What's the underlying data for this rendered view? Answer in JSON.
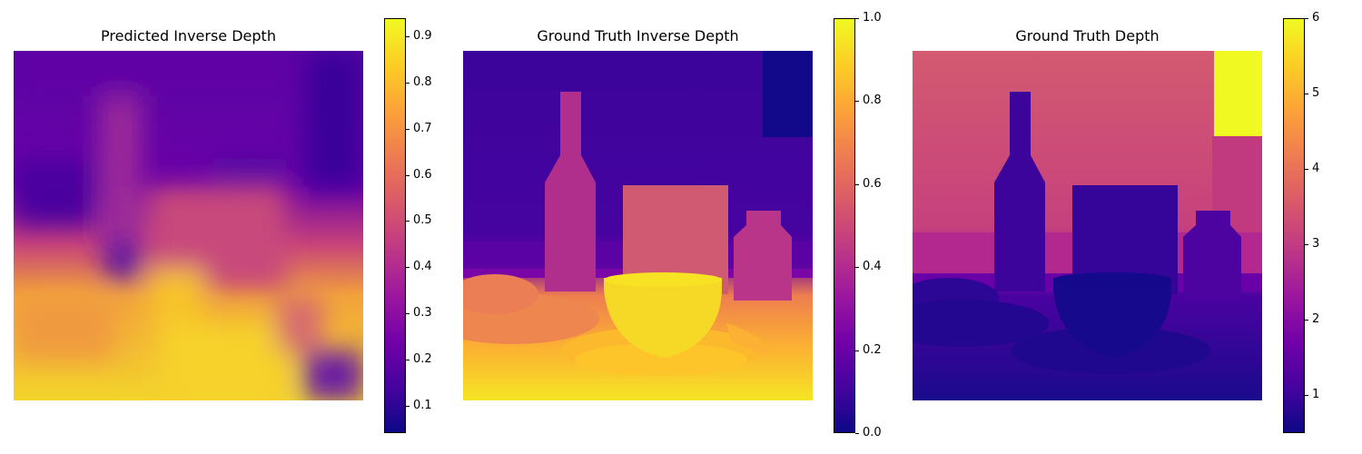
{
  "colormap": [
    "#0d0887",
    "#46039f",
    "#7201a8",
    "#9c179e",
    "#bd3786",
    "#d8576b",
    "#ed7953",
    "#fb9f3a",
    "#fdca26",
    "#f0f921"
  ],
  "chart_data": [
    {
      "type": "heatmap",
      "title": "Predicted Inverse Depth",
      "colorbar": {
        "vmin": 0.04,
        "vmax": 0.94,
        "ticks": [
          0.1,
          0.2,
          0.3,
          0.4,
          0.5,
          0.6,
          0.7,
          0.8,
          0.9
        ],
        "tick_labels": [
          "0.1",
          "0.2",
          "0.3",
          "0.4",
          "0.5",
          "0.6",
          "0.7",
          "0.8",
          "0.9"
        ]
      }
    },
    {
      "type": "heatmap",
      "title": "Ground Truth Inverse Depth",
      "colorbar": {
        "vmin": 0.0,
        "vmax": 1.0,
        "ticks": [
          0.0,
          0.2,
          0.4,
          0.6,
          0.8,
          1.0
        ],
        "tick_labels": [
          "0.0",
          "0.2",
          "0.4",
          "0.6",
          "0.8",
          "1.0"
        ]
      }
    },
    {
      "type": "heatmap",
      "title": "Ground Truth Depth",
      "colorbar": {
        "vmin": 0.5,
        "vmax": 6.0,
        "ticks": [
          1,
          2,
          3,
          4,
          5,
          6
        ],
        "tick_labels": [
          "1",
          "2",
          "3",
          "4",
          "5",
          "6"
        ]
      }
    }
  ]
}
